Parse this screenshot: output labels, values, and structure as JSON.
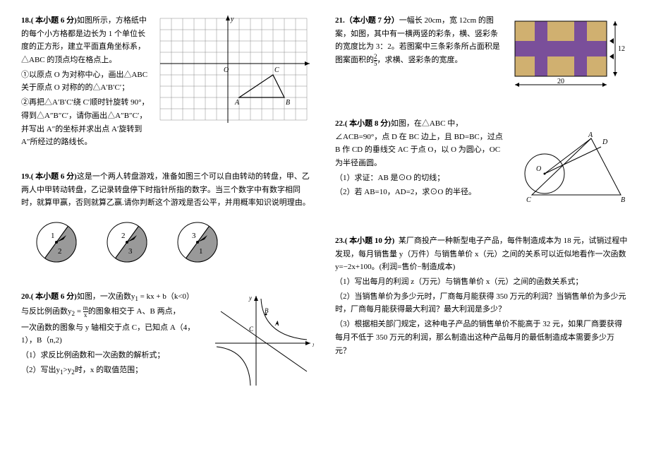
{
  "left": {
    "p18": {
      "header": "18.( 本小题 6 分)",
      "t1": "如图所示，方格纸中的每个小方格都是边长为 1 个单位长度的正方形，建立平面直角坐标系，△ABC 的顶点均在格点上。",
      "t2": "①以原点 O 为对称中心，画出△ABC 关于原点 O 对称的的△A′B′C′；",
      "t3": "②再把△A′B′C′绕 C′顺时针旋转 90°，得到△A″B″C′，请你画出△A″B″C′，并写出 A″的坐标并求出点 A′旋转到 A″所经过的路线长。"
    },
    "p19": {
      "header": "19.( 本小题 6 分)",
      "t1": "这是一个两人转盘游戏，准备如图三个可以自由转动的转盘，甲、乙两人中甲转动转盘，乙记录转盘停下时指针所指的数字。当三个数字中有数字相同时，就算甲赢，否则就算乙赢.请你判断这个游戏是否公平，并用概率知识说明理由。",
      "labels": [
        "1",
        "2",
        "2",
        "3",
        "3",
        "1"
      ]
    },
    "p20": {
      "header": "20.( 本小题 6 分)",
      "t1a": "如图，一次函数y",
      "t1b": " = kx + b（k<0）与反比例函数y",
      "t1c": " = ",
      "t1d": "m",
      "t1e": "x",
      "t1f": "的图象相交于 A、B 两点，",
      "t2": "一次函数的图象与 y 轴相交于点 C，已知点 A（4，1），B（n,2)",
      "t3": "（1）求反比例函数和一次函数的解析式；",
      "t4a": "（2）写出y",
      "t4b": ">y",
      "t4c": "时，x 的取值范围；"
    }
  },
  "right": {
    "p21": {
      "header": "21.（本小题 7 分）",
      "t1a": "一幅长 20cm，宽 12cm 的图案，如图，其中有一横两竖的彩条，横、竖彩条的宽度比为 3：2。若图案中三条彩条所占面积是图案面积的",
      "frac_n": "2",
      "frac_d": "5",
      "t1b": "，求横、竖彩条的宽度。"
    },
    "p22": {
      "header": "22.( 本小题 8 分)",
      "t1": "如图，在△ABC 中，∠ACB=90°，点 D 在 BC 边上，且 BD=BC，过点 B 作 CD 的垂线交 AC 于点 O，以 O 为圆心，OC 为半径画圆。",
      "t2": "（1）求证：AB 是⊙O 的切线；",
      "t3": "（2）若 AB=10，AD=2，求⊙O 的半径。"
    },
    "p23": {
      "header": "23.( 本小题 10 分)",
      "t1": "某厂商投产一种新型电子产品，每件制造成本为 18 元，试销过程中发现，每月销售量 y（万件）与销售单价 x（元）之间的关系可以近似地看作一次函数 y=−2x+100。(利润=售价−制造成本)",
      "t2": "（1）写出每月的利润 z（万元）与销售单价 x（元）之间的函数关系式；",
      "t3": "（2）当销售单价为多少元时，厂商每月能获得 350 万元的利润？当销售单价为多少元时，厂商每月能获得最大利润？最大利润是多少？",
      "t4": "（3）根据相关部门规定，这种电子产品的销售单价不能高于 32 元，如果厂商要获得每月不低于 350 万元的利润，那么制造出这种产品每月的最低制造成本需要多少万元？"
    }
  },
  "labels": {
    "O": "O",
    "A": "A",
    "B": "B",
    "C": "C",
    "D": "D",
    "y": "y",
    "x": "x",
    "w20": "20",
    "h12": "12"
  },
  "colors": {
    "grid": "#888",
    "axis": "#000",
    "shape": "#000",
    "hatch": "#999",
    "rectFill": "#7a4f9a",
    "rectBg": "#d0b070"
  }
}
